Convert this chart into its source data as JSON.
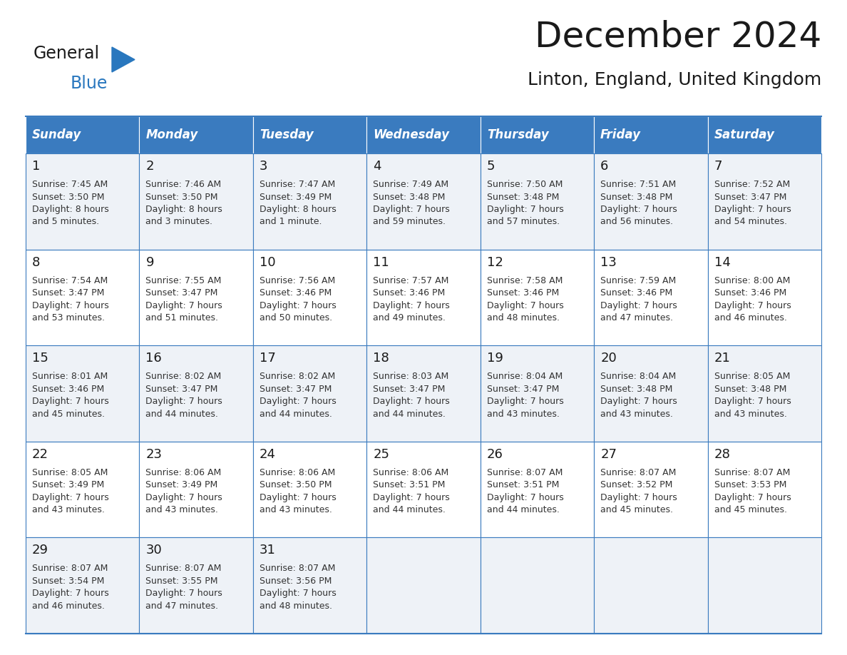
{
  "title": "December 2024",
  "subtitle": "Linton, England, United Kingdom",
  "header_color": "#3a7bbf",
  "header_text_color": "#ffffff",
  "cell_bg_color_light": "#eef2f7",
  "cell_bg_color_white": "#ffffff",
  "border_color": "#3a7bbf",
  "text_color": "#333333",
  "day_number_color": "#1a1a1a",
  "day_headers": [
    "Sunday",
    "Monday",
    "Tuesday",
    "Wednesday",
    "Thursday",
    "Friday",
    "Saturday"
  ],
  "weeks": [
    [
      {
        "day": 1,
        "sunrise": "7:45 AM",
        "sunset": "3:50 PM",
        "daylight": "8 hours and 5 minutes."
      },
      {
        "day": 2,
        "sunrise": "7:46 AM",
        "sunset": "3:50 PM",
        "daylight": "8 hours and 3 minutes."
      },
      {
        "day": 3,
        "sunrise": "7:47 AM",
        "sunset": "3:49 PM",
        "daylight": "8 hours and 1 minute."
      },
      {
        "day": 4,
        "sunrise": "7:49 AM",
        "sunset": "3:48 PM",
        "daylight": "7 hours and 59 minutes."
      },
      {
        "day": 5,
        "sunrise": "7:50 AM",
        "sunset": "3:48 PM",
        "daylight": "7 hours and 57 minutes."
      },
      {
        "day": 6,
        "sunrise": "7:51 AM",
        "sunset": "3:48 PM",
        "daylight": "7 hours and 56 minutes."
      },
      {
        "day": 7,
        "sunrise": "7:52 AM",
        "sunset": "3:47 PM",
        "daylight": "7 hours and 54 minutes."
      }
    ],
    [
      {
        "day": 8,
        "sunrise": "7:54 AM",
        "sunset": "3:47 PM",
        "daylight": "7 hours and 53 minutes."
      },
      {
        "day": 9,
        "sunrise": "7:55 AM",
        "sunset": "3:47 PM",
        "daylight": "7 hours and 51 minutes."
      },
      {
        "day": 10,
        "sunrise": "7:56 AM",
        "sunset": "3:46 PM",
        "daylight": "7 hours and 50 minutes."
      },
      {
        "day": 11,
        "sunrise": "7:57 AM",
        "sunset": "3:46 PM",
        "daylight": "7 hours and 49 minutes."
      },
      {
        "day": 12,
        "sunrise": "7:58 AM",
        "sunset": "3:46 PM",
        "daylight": "7 hours and 48 minutes."
      },
      {
        "day": 13,
        "sunrise": "7:59 AM",
        "sunset": "3:46 PM",
        "daylight": "7 hours and 47 minutes."
      },
      {
        "day": 14,
        "sunrise": "8:00 AM",
        "sunset": "3:46 PM",
        "daylight": "7 hours and 46 minutes."
      }
    ],
    [
      {
        "day": 15,
        "sunrise": "8:01 AM",
        "sunset": "3:46 PM",
        "daylight": "7 hours and 45 minutes."
      },
      {
        "day": 16,
        "sunrise": "8:02 AM",
        "sunset": "3:47 PM",
        "daylight": "7 hours and 44 minutes."
      },
      {
        "day": 17,
        "sunrise": "8:02 AM",
        "sunset": "3:47 PM",
        "daylight": "7 hours and 44 minutes."
      },
      {
        "day": 18,
        "sunrise": "8:03 AM",
        "sunset": "3:47 PM",
        "daylight": "7 hours and 44 minutes."
      },
      {
        "day": 19,
        "sunrise": "8:04 AM",
        "sunset": "3:47 PM",
        "daylight": "7 hours and 43 minutes."
      },
      {
        "day": 20,
        "sunrise": "8:04 AM",
        "sunset": "3:48 PM",
        "daylight": "7 hours and 43 minutes."
      },
      {
        "day": 21,
        "sunrise": "8:05 AM",
        "sunset": "3:48 PM",
        "daylight": "7 hours and 43 minutes."
      }
    ],
    [
      {
        "day": 22,
        "sunrise": "8:05 AM",
        "sunset": "3:49 PM",
        "daylight": "7 hours and 43 minutes."
      },
      {
        "day": 23,
        "sunrise": "8:06 AM",
        "sunset": "3:49 PM",
        "daylight": "7 hours and 43 minutes."
      },
      {
        "day": 24,
        "sunrise": "8:06 AM",
        "sunset": "3:50 PM",
        "daylight": "7 hours and 43 minutes."
      },
      {
        "day": 25,
        "sunrise": "8:06 AM",
        "sunset": "3:51 PM",
        "daylight": "7 hours and 44 minutes."
      },
      {
        "day": 26,
        "sunrise": "8:07 AM",
        "sunset": "3:51 PM",
        "daylight": "7 hours and 44 minutes."
      },
      {
        "day": 27,
        "sunrise": "8:07 AM",
        "sunset": "3:52 PM",
        "daylight": "7 hours and 45 minutes."
      },
      {
        "day": 28,
        "sunrise": "8:07 AM",
        "sunset": "3:53 PM",
        "daylight": "7 hours and 45 minutes."
      }
    ],
    [
      {
        "day": 29,
        "sunrise": "8:07 AM",
        "sunset": "3:54 PM",
        "daylight": "7 hours and 46 minutes."
      },
      {
        "day": 30,
        "sunrise": "8:07 AM",
        "sunset": "3:55 PM",
        "daylight": "7 hours and 47 minutes."
      },
      {
        "day": 31,
        "sunrise": "8:07 AM",
        "sunset": "3:56 PM",
        "daylight": "7 hours and 48 minutes."
      },
      null,
      null,
      null,
      null
    ]
  ],
  "logo_text_general": "General",
  "logo_text_blue": "Blue",
  "logo_color_general": "#1a1a1a",
  "logo_color_blue": "#2977be",
  "logo_triangle_color": "#2977be",
  "title_fontsize": 36,
  "subtitle_fontsize": 18,
  "header_fontsize": 12,
  "day_num_fontsize": 13,
  "cell_fontsize": 9
}
